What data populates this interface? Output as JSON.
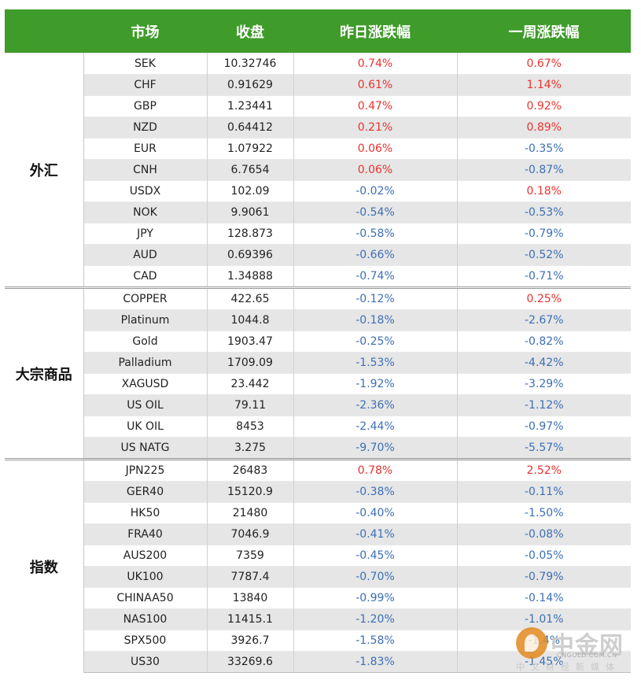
{
  "header": {
    "col_group": "",
    "col_market": "市场",
    "col_close": "收盘",
    "col_day": "昨日涨跌幅",
    "col_week": "一周涨跌幅"
  },
  "groups": [
    {
      "name": "外汇",
      "rows": [
        {
          "market": "SEK",
          "close": "10.32746",
          "day": "0.74%",
          "week": "0.67%"
        },
        {
          "market": "CHF",
          "close": "0.91629",
          "day": "0.61%",
          "week": "1.14%"
        },
        {
          "market": "GBP",
          "close": "1.23441",
          "day": "0.47%",
          "week": "0.92%"
        },
        {
          "market": "NZD",
          "close": "0.64412",
          "day": "0.21%",
          "week": "0.89%"
        },
        {
          "market": "EUR",
          "close": "1.07922",
          "day": "0.06%",
          "week": "-0.35%"
        },
        {
          "market": "CNH",
          "close": "6.7654",
          "day": "0.06%",
          "week": "-0.87%"
        },
        {
          "market": "USDX",
          "close": "102.09",
          "day": "-0.02%",
          "week": "0.18%"
        },
        {
          "market": "NOK",
          "close": "9.9061",
          "day": "-0.54%",
          "week": "-0.53%"
        },
        {
          "market": "JPY",
          "close": "128.873",
          "day": "-0.58%",
          "week": "-0.79%"
        },
        {
          "market": "AUD",
          "close": "0.69396",
          "day": "-0.66%",
          "week": "-0.52%"
        },
        {
          "market": "CAD",
          "close": "1.34888",
          "day": "-0.74%",
          "week": "-0.71%"
        }
      ]
    },
    {
      "name": "大宗商品",
      "rows": [
        {
          "market": "COPPER",
          "close": "422.65",
          "day": "-0.12%",
          "week": "0.25%"
        },
        {
          "market": "Platinum",
          "close": "1044.8",
          "day": "-0.18%",
          "week": "-2.67%"
        },
        {
          "market": "Gold",
          "close": "1903.47",
          "day": "-0.25%",
          "week": "-0.82%"
        },
        {
          "market": "Palladium",
          "close": "1709.09",
          "day": "-1.53%",
          "week": "-4.42%"
        },
        {
          "market": "XAGUSD",
          "close": "23.442",
          "day": "-1.92%",
          "week": "-3.29%"
        },
        {
          "market": "US OIL",
          "close": "79.11",
          "day": "-2.36%",
          "week": "-1.12%"
        },
        {
          "market": "UK OIL",
          "close": "8453",
          "day": "-2.44%",
          "week": "-0.97%"
        },
        {
          "market": "US NATG",
          "close": "3.275",
          "day": "-9.70%",
          "week": "-5.57%"
        }
      ]
    },
    {
      "name": "指数",
      "rows": [
        {
          "market": "JPN225",
          "close": "26483",
          "day": "0.78%",
          "week": "2.52%"
        },
        {
          "market": "GER40",
          "close": "15120.9",
          "day": "-0.38%",
          "week": "-0.11%"
        },
        {
          "market": "HK50",
          "close": "21480",
          "day": "-0.40%",
          "week": "-1.50%"
        },
        {
          "market": "FRA40",
          "close": "7046.9",
          "day": "-0.41%",
          "week": "-0.08%"
        },
        {
          "market": "AUS200",
          "close": "7359",
          "day": "-0.45%",
          "week": "-0.05%"
        },
        {
          "market": "UK100",
          "close": "7787.4",
          "day": "-0.70%",
          "week": "-0.79%"
        },
        {
          "market": "CHINAA50",
          "close": "13840",
          "day": "-0.99%",
          "week": "-0.14%"
        },
        {
          "market": "NAS100",
          "close": "11415.1",
          "day": "-1.20%",
          "week": "-1.01%"
        },
        {
          "market": "SPX500",
          "close": "3926.7",
          "day": "-1.58%",
          "week": "-1.4%"
        },
        {
          "market": "US30",
          "close": "33269.6",
          "day": "-1.83%",
          "week": "-1.45%"
        }
      ]
    }
  ],
  "colors": {
    "header_bg": "#3f9b2a",
    "positive": "#e8332f",
    "negative": "#3d6fb5",
    "stripe": "#e6e6e6"
  },
  "watermark": {
    "name": "中金网",
    "url": "CNGOLD.COM.CN",
    "slogan": "中文财经新媒体",
    "icon": "cngold-logo-icon"
  }
}
